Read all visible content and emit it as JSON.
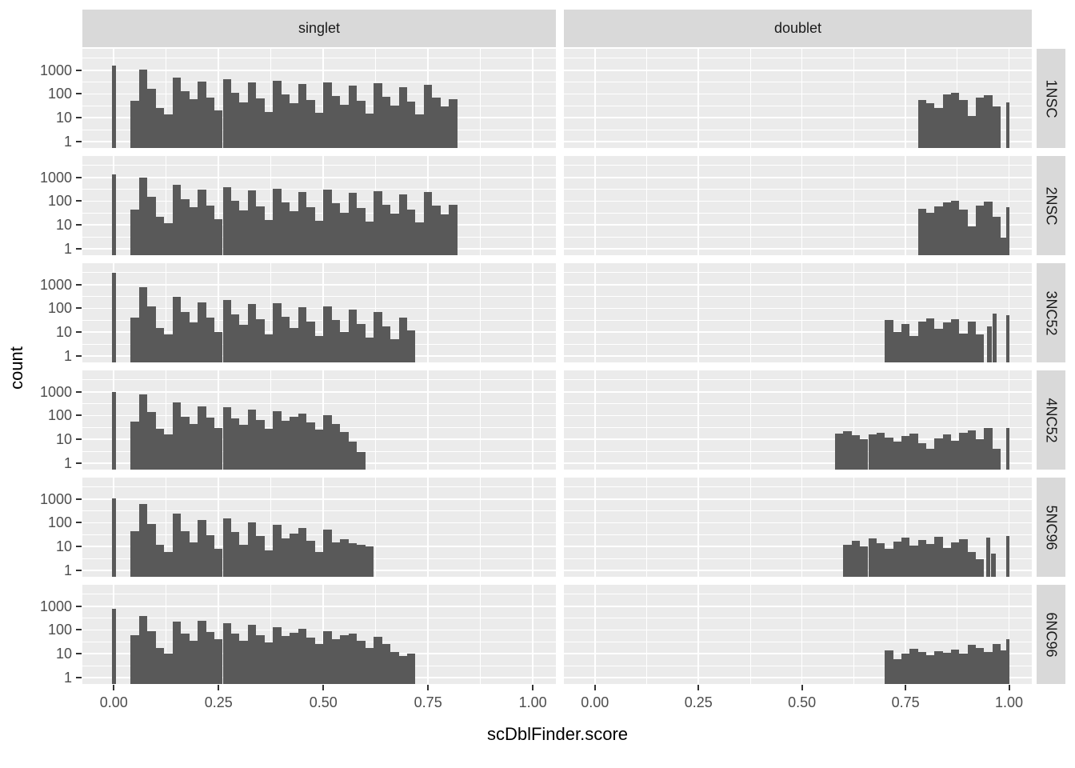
{
  "figure": {
    "x_axis_title": "scDblFinder.score",
    "y_axis_title": "count",
    "col_facets": [
      "singlet",
      "doublet"
    ],
    "row_facets": [
      "1NSC",
      "2NSC",
      "3NC52",
      "4NC52",
      "5NC96",
      "6NC96"
    ],
    "x_tick_labels": [
      "0.00",
      "0.25",
      "0.50",
      "0.75",
      "1.00"
    ],
    "y_tick_labels": [
      "1000",
      "100",
      "10",
      "1"
    ]
  },
  "colors": {
    "bar": "#595959",
    "panel_background": "#EBEBEB",
    "strip_background": "#D9D9D9",
    "gridline": "#FFFFFF",
    "tick_label": "#4D4D4D",
    "axis_title": "#000000"
  },
  "chart_data": {
    "type": "bar",
    "subtype": "faceted-histogram",
    "title": "",
    "xlabel": "scDblFinder.score",
    "ylabel": "count",
    "x_ticks": [
      0,
      0.25,
      0.5,
      0.75,
      1.0
    ],
    "x_minor_ticks": [
      0.125,
      0.375,
      0.625,
      0.875
    ],
    "y_ticks": [
      1,
      10,
      100,
      1000
    ],
    "y_minor_log10": [
      0.5,
      1.5,
      2.5,
      3.5
    ],
    "y_major_log10": [
      0,
      1,
      2,
      3
    ],
    "y_scale": "log10",
    "x_range": [
      -0.075,
      1.055
    ],
    "y_log10_range": [
      -0.27,
      3.9
    ],
    "binwidth": 0.02,
    "legend": "none",
    "grid": "on",
    "facet_cols": [
      "singlet",
      "doublet"
    ],
    "facet_rows": [
      "1NSC",
      "2NSC",
      "3NC52",
      "4NC52",
      "5NC96",
      "6NC96"
    ],
    "panels": [
      {
        "facet_row": "1NSC",
        "facet_col": "singlet",
        "x0": 0.04,
        "counts": [
          50,
          1050,
          160,
          25,
          14,
          500,
          130,
          60,
          330,
          70,
          20,
          420,
          110,
          45,
          300,
          65,
          18,
          360,
          95,
          40,
          260,
          58,
          16,
          310,
          85,
          35,
          230,
          52,
          15,
          280,
          75,
          32,
          200,
          48,
          14,
          250,
          68,
          30,
          60
        ],
        "extra": [
          [
            -0.005,
            1600,
            0.01
          ]
        ]
      },
      {
        "facet_row": "1NSC",
        "facet_col": "doublet",
        "x0": 0.78,
        "counts": [
          55,
          40,
          26,
          95,
          115,
          55,
          12,
          70,
          88,
          30
        ],
        "extra": [
          [
            0.993,
            45,
            0.007
          ]
        ]
      },
      {
        "facet_row": "2NSC",
        "facet_col": "singlet",
        "x0": 0.04,
        "counts": [
          45,
          1000,
          150,
          22,
          12,
          480,
          120,
          55,
          310,
          65,
          18,
          400,
          100,
          42,
          290,
          60,
          16,
          340,
          90,
          38,
          250,
          55,
          15,
          300,
          80,
          33,
          220,
          50,
          14,
          270,
          72,
          30,
          190,
          46,
          13,
          240,
          65,
          28,
          70
        ],
        "extra": [
          [
            -0.005,
            1350,
            0.01
          ]
        ]
      },
      {
        "facet_row": "2NSC",
        "facet_col": "doublet",
        "x0": 0.78,
        "counts": [
          48,
          32,
          60,
          90,
          105,
          45,
          9,
          65,
          95,
          22,
          3
        ],
        "extra": [
          [
            0.993,
            55,
            0.007
          ]
        ]
      },
      {
        "facet_row": "3NC52",
        "facet_col": "singlet",
        "x0": 0.04,
        "counts": [
          40,
          800,
          120,
          15,
          8,
          300,
          70,
          25,
          180,
          40,
          10,
          220,
          55,
          20,
          150,
          35,
          8,
          160,
          45,
          15,
          110,
          28,
          7,
          120,
          32,
          10,
          90,
          22,
          6,
          70,
          18,
          5,
          40,
          12
        ],
        "extra": [
          [
            -0.005,
            3200,
            0.01
          ]
        ]
      },
      {
        "facet_row": "3NC52",
        "facet_col": "doublet",
        "x0": 0.7,
        "counts": [
          32,
          10,
          22,
          7,
          28,
          38,
          14,
          26,
          34,
          9,
          28,
          8
        ],
        "extra": [
          [
            0.946,
            18,
            0.012
          ],
          [
            0.96,
            60,
            0.01
          ],
          [
            0.993,
            50,
            0.007
          ]
        ]
      },
      {
        "facet_row": "4NC52",
        "facet_col": "singlet",
        "x0": 0.04,
        "counts": [
          55,
          800,
          140,
          28,
          16,
          350,
          90,
          45,
          250,
          80,
          30,
          220,
          75,
          40,
          180,
          65,
          28,
          150,
          60,
          90,
          120,
          50,
          25,
          100,
          45,
          20,
          8,
          3
        ],
        "extra": [
          [
            -0.005,
            1000,
            0.01
          ]
        ]
      },
      {
        "facet_row": "4NC52",
        "facet_col": "doublet",
        "x0": 0.58,
        "counts": [
          18,
          22,
          15,
          10,
          16,
          19,
          12,
          8,
          14,
          18,
          7,
          4,
          11,
          16,
          9,
          19,
          23,
          10,
          30,
          4
        ],
        "extra": [
          [
            0.993,
            30,
            0.007
          ]
        ]
      },
      {
        "facet_row": "5NC96",
        "facet_col": "singlet",
        "x0": 0.04,
        "counts": [
          45,
          600,
          90,
          12,
          6,
          250,
          45,
          15,
          130,
          30,
          8,
          150,
          40,
          12,
          100,
          28,
          7,
          80,
          22,
          35,
          60,
          18,
          6,
          50,
          15,
          20,
          14,
          12,
          10
        ],
        "extra": [
          [
            -0.005,
            1100,
            0.01
          ]
        ]
      },
      {
        "facet_row": "5NC96",
        "facet_col": "doublet",
        "x0": 0.6,
        "counts": [
          12,
          18,
          10,
          22,
          14,
          8,
          16,
          24,
          11,
          19,
          13,
          26,
          9,
          15,
          20,
          6,
          3
        ],
        "extra": [
          [
            0.944,
            24,
            0.01
          ],
          [
            0.956,
            5,
            0.012
          ],
          [
            0.993,
            28,
            0.007
          ]
        ]
      },
      {
        "facet_row": "6NC96",
        "facet_col": "singlet",
        "x0": 0.04,
        "counts": [
          60,
          400,
          90,
          18,
          10,
          220,
          70,
          35,
          250,
          80,
          40,
          200,
          70,
          35,
          160,
          60,
          30,
          130,
          55,
          75,
          110,
          48,
          25,
          90,
          40,
          60,
          70,
          35,
          18,
          50,
          25,
          12,
          8,
          10
        ],
        "extra": [
          [
            -0.005,
            800,
            0.01
          ]
        ]
      },
      {
        "facet_row": "6NC96",
        "facet_col": "doublet",
        "x0": 0.7,
        "counts": [
          14,
          6,
          10,
          16,
          12,
          9,
          13,
          11,
          15,
          10,
          24,
          18,
          12,
          26,
          14
        ],
        "extra": [
          [
            0.993,
            40,
            0.007
          ]
        ]
      }
    ]
  }
}
